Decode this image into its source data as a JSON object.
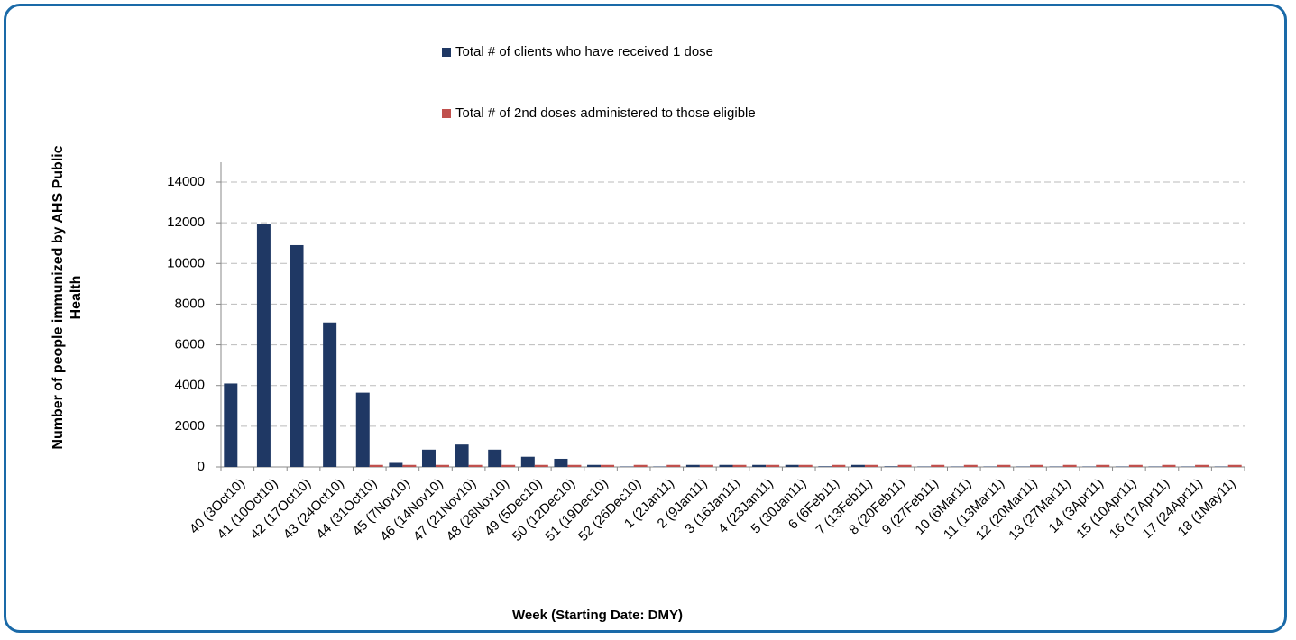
{
  "chart_data": {
    "type": "bar",
    "xlabel": "Week (Starting Date: DMY)",
    "ylabel": "Number of people immunized by AHS Public Health",
    "categories": [
      "40 (3Oct10)",
      "41 (10Oct10)",
      "42 (17Oct10)",
      "43 (24Oct10)",
      "44 (31Oct10)",
      "45 (7Nov10)",
      "46 (14Nov10)",
      "47 (21Nov10)",
      "48 (28Nov10)",
      "49 (5Dec10)",
      "50 (12Dec10)",
      "51 (19Dec10)",
      "52 (26Dec10)",
      "1 (2Jan11)",
      "2 (9Jan11)",
      "3 (16Jan11)",
      "4 (23Jan11)",
      "5 (30Jan11)",
      "6 (6Feb11)",
      "7 (13Feb11)",
      "8 (20Feb11)",
      "9 (27Feb11)",
      "10 (6Mar11)",
      "11 (13Mar11)",
      "12 (20Mar11)",
      "13 (27Mar11)",
      "14 (3Apr11)",
      "15 (10Apr11)",
      "16 (17Apr11)",
      "17 (24Apr11)",
      "18 (1May11)"
    ],
    "series": [
      {
        "name": "Total # of clients who have received 1 dose",
        "color": "#1f3864",
        "values": [
          4100,
          11950,
          10900,
          7100,
          3650,
          200,
          850,
          1100,
          850,
          500,
          400,
          100,
          20,
          20,
          100,
          100,
          100,
          100,
          30,
          100,
          30,
          20,
          20,
          20,
          20,
          20,
          20,
          20,
          20,
          20,
          20
        ]
      },
      {
        "name": "Total # of 2nd doses administered to those eligible",
        "color": "#c0504d",
        "values": [
          0,
          0,
          0,
          0,
          100,
          100,
          100,
          100,
          100,
          100,
          100,
          100,
          100,
          100,
          100,
          100,
          100,
          100,
          100,
          100,
          100,
          100,
          100,
          100,
          100,
          100,
          100,
          100,
          100,
          100,
          100
        ]
      }
    ],
    "ylim": [
      0,
      14000
    ],
    "yticks": [
      0,
      2000,
      4000,
      6000,
      8000,
      10000,
      12000,
      14000
    ],
    "grid": true,
    "legend": "top"
  }
}
